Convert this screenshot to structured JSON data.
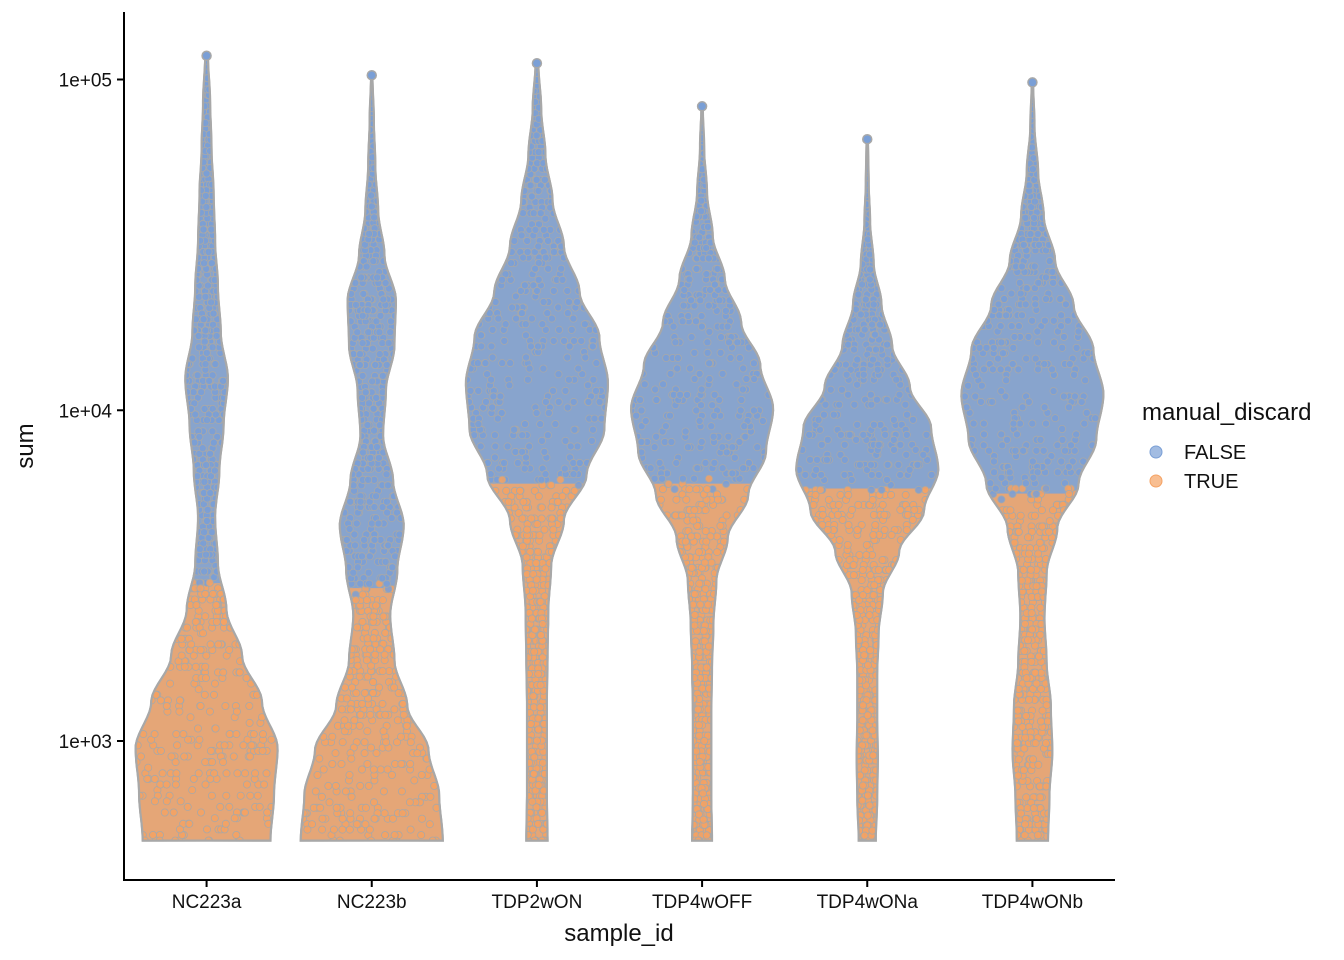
{
  "chart_data": {
    "type": "violin",
    "xlabel": "sample_id",
    "ylabel": "sum",
    "y_scale": "log10",
    "ylim": [
      380,
      160000
    ],
    "y_ticks": [
      {
        "value": 1000,
        "label": "1e+03"
      },
      {
        "value": 10000,
        "label": "1e+04"
      },
      {
        "value": 100000,
        "label": "1e+05"
      }
    ],
    "categories": [
      "NC223a",
      "NC223b",
      "TDP2wON",
      "TDP4wOFF",
      "TDP4wONa",
      "TDP4wONb"
    ],
    "legend": {
      "title": "manual_discard",
      "position": "right",
      "entries": [
        {
          "label": "FALSE",
          "color": "#7a9fd6"
        },
        {
          "label": "TRUE",
          "color": "#f5a263"
        }
      ]
    },
    "colors": {
      "FALSE": "#7a9fd6",
      "TRUE": "#f5a263",
      "outline": "#a8a8a8"
    },
    "violins": [
      {
        "sample": "NC223a",
        "min": 500,
        "max": 118000,
        "threshold": 3000,
        "widths": [
          0.9,
          0.95,
          1.0,
          0.78,
          0.5,
          0.28,
          0.16,
          0.12,
          0.18,
          0.24,
          0.3,
          0.2,
          0.16,
          0.12,
          0.1,
          0.07,
          0.05,
          0.02
        ]
      },
      {
        "sample": "NC223b",
        "min": 500,
        "max": 103000,
        "threshold": 2900,
        "widths": [
          1.0,
          0.95,
          0.8,
          0.5,
          0.32,
          0.26,
          0.36,
          0.45,
          0.3,
          0.16,
          0.2,
          0.32,
          0.34,
          0.18,
          0.09,
          0.05,
          0.03,
          0.01
        ]
      },
      {
        "sample": "TDP2wON",
        "min": 500,
        "max": 112000,
        "threshold": 6000,
        "widths": [
          0.15,
          0.14,
          0.14,
          0.14,
          0.15,
          0.16,
          0.2,
          0.38,
          0.7,
          0.95,
          1.0,
          0.88,
          0.6,
          0.38,
          0.22,
          0.12,
          0.06,
          0.02
        ]
      },
      {
        "sample": "TDP4wOFF",
        "min": 500,
        "max": 83000,
        "threshold": 6000,
        "widths": [
          0.14,
          0.13,
          0.13,
          0.13,
          0.14,
          0.16,
          0.2,
          0.36,
          0.65,
          0.9,
          1.0,
          0.82,
          0.55,
          0.32,
          0.15,
          0.07,
          0.03,
          0.01
        ]
      },
      {
        "sample": "TDP4wONa",
        "min": 500,
        "max": 66000,
        "threshold": 5800,
        "widths": [
          0.12,
          0.14,
          0.15,
          0.14,
          0.14,
          0.16,
          0.22,
          0.45,
          0.8,
          1.0,
          0.9,
          0.6,
          0.35,
          0.2,
          0.09,
          0.04,
          0.02,
          0.01
        ]
      },
      {
        "sample": "TDP4wONb",
        "min": 500,
        "max": 98000,
        "threshold": 5600,
        "widths": [
          0.22,
          0.24,
          0.28,
          0.26,
          0.2,
          0.17,
          0.2,
          0.35,
          0.65,
          0.9,
          1.0,
          0.86,
          0.58,
          0.32,
          0.16,
          0.08,
          0.03,
          0.01
        ]
      }
    ]
  }
}
